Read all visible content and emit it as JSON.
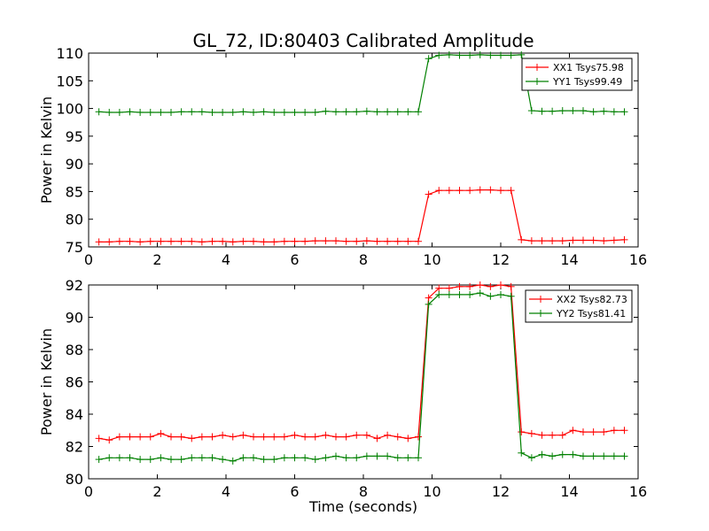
{
  "chart_data": [
    {
      "type": "line",
      "title": "GL_72, ID:80403 Calibrated Amplitude",
      "xlabel": "",
      "ylabel": "Power in Kelvin",
      "xlim": [
        0,
        16
      ],
      "ylim": [
        75,
        110
      ],
      "xticks": [
        "0",
        "2",
        "4",
        "6",
        "8",
        "10",
        "12",
        "14",
        "16"
      ],
      "yticks": [
        "75",
        "80",
        "85",
        "90",
        "95",
        "100",
        "105",
        "110"
      ],
      "grid": false,
      "legend_position": "top-right",
      "x": [
        0.3,
        0.6,
        0.9,
        1.2,
        1.5,
        1.8,
        2.1,
        2.4,
        2.7,
        3.0,
        3.3,
        3.6,
        3.9,
        4.2,
        4.5,
        4.8,
        5.1,
        5.4,
        5.7,
        6.0,
        6.3,
        6.6,
        6.9,
        7.2,
        7.5,
        7.8,
        8.1,
        8.4,
        8.7,
        9.0,
        9.3,
        9.6,
        9.9,
        10.2,
        10.5,
        10.8,
        11.1,
        11.4,
        11.7,
        12.0,
        12.3,
        12.6,
        12.9,
        13.2,
        13.5,
        13.8,
        14.1,
        14.4,
        14.7,
        15.0,
        15.3,
        15.6
      ],
      "series": [
        {
          "name": "XX1 Tsys75.98",
          "color": "#ff0000",
          "values": [
            75.9,
            75.9,
            76.0,
            76.0,
            75.9,
            76.0,
            76.0,
            76.0,
            76.0,
            76.0,
            75.9,
            76.0,
            76.0,
            75.9,
            76.0,
            76.0,
            75.9,
            75.9,
            76.0,
            76.0,
            76.0,
            76.1,
            76.1,
            76.1,
            76.0,
            76.0,
            76.1,
            76.0,
            76.0,
            76.0,
            76.0,
            76.0,
            84.5,
            85.2,
            85.2,
            85.2,
            85.2,
            85.3,
            85.3,
            85.2,
            85.2,
            76.3,
            76.1,
            76.1,
            76.1,
            76.1,
            76.2,
            76.2,
            76.2,
            76.1,
            76.2,
            76.3
          ]
        },
        {
          "name": "YY1 Tsys99.49",
          "color": "#008000",
          "values": [
            99.4,
            99.3,
            99.3,
            99.4,
            99.3,
            99.3,
            99.3,
            99.3,
            99.4,
            99.4,
            99.4,
            99.3,
            99.3,
            99.3,
            99.4,
            99.3,
            99.4,
            99.3,
            99.3,
            99.3,
            99.3,
            99.3,
            99.5,
            99.4,
            99.4,
            99.4,
            99.5,
            99.4,
            99.4,
            99.4,
            99.4,
            99.4,
            109.0,
            109.6,
            109.7,
            109.6,
            109.6,
            109.7,
            109.6,
            109.6,
            109.6,
            109.7,
            99.6,
            99.5,
            99.5,
            99.6,
            99.6,
            99.6,
            99.4,
            99.5,
            99.4,
            99.4
          ]
        }
      ]
    },
    {
      "type": "line",
      "title": "",
      "xlabel": "Time (seconds)",
      "ylabel": "Power in Kelvin",
      "xlim": [
        0,
        16
      ],
      "ylim": [
        80,
        92
      ],
      "xticks": [
        "0",
        "2",
        "4",
        "6",
        "8",
        "10",
        "12",
        "14",
        "16"
      ],
      "yticks": [
        "80",
        "82",
        "84",
        "86",
        "88",
        "90",
        "92"
      ],
      "grid": false,
      "legend_position": "top-right",
      "x": [
        0.3,
        0.6,
        0.9,
        1.2,
        1.5,
        1.8,
        2.1,
        2.4,
        2.7,
        3.0,
        3.3,
        3.6,
        3.9,
        4.2,
        4.5,
        4.8,
        5.1,
        5.4,
        5.7,
        6.0,
        6.3,
        6.6,
        6.9,
        7.2,
        7.5,
        7.8,
        8.1,
        8.4,
        8.7,
        9.0,
        9.3,
        9.6,
        9.9,
        10.2,
        10.5,
        10.8,
        11.1,
        11.4,
        11.7,
        12.0,
        12.3,
        12.6,
        12.9,
        13.2,
        13.5,
        13.8,
        14.1,
        14.4,
        14.7,
        15.0,
        15.3,
        15.6
      ],
      "series": [
        {
          "name": "XX2 Tsys82.73",
          "color": "#ff0000",
          "values": [
            82.5,
            82.4,
            82.6,
            82.6,
            82.6,
            82.6,
            82.8,
            82.6,
            82.6,
            82.5,
            82.6,
            82.6,
            82.7,
            82.6,
            82.7,
            82.6,
            82.6,
            82.6,
            82.6,
            82.7,
            82.6,
            82.6,
            82.7,
            82.6,
            82.6,
            82.7,
            82.7,
            82.5,
            82.7,
            82.6,
            82.5,
            82.6,
            91.2,
            91.8,
            91.8,
            91.9,
            91.9,
            92.0,
            91.9,
            92.0,
            91.9,
            82.9,
            82.8,
            82.7,
            82.7,
            82.7,
            83.0,
            82.9,
            82.9,
            82.9,
            83.0,
            83.0
          ]
        },
        {
          "name": "YY2 Tsys81.41",
          "color": "#008000",
          "values": [
            81.2,
            81.3,
            81.3,
            81.3,
            81.2,
            81.2,
            81.3,
            81.2,
            81.2,
            81.3,
            81.3,
            81.3,
            81.2,
            81.1,
            81.3,
            81.3,
            81.2,
            81.2,
            81.3,
            81.3,
            81.3,
            81.2,
            81.3,
            81.4,
            81.3,
            81.3,
            81.4,
            81.4,
            81.4,
            81.3,
            81.3,
            81.3,
            90.8,
            91.4,
            91.4,
            91.4,
            91.4,
            91.5,
            91.3,
            91.4,
            91.3,
            81.6,
            81.3,
            81.5,
            81.4,
            81.5,
            81.5,
            81.4,
            81.4,
            81.4,
            81.4,
            81.4
          ]
        }
      ]
    }
  ]
}
